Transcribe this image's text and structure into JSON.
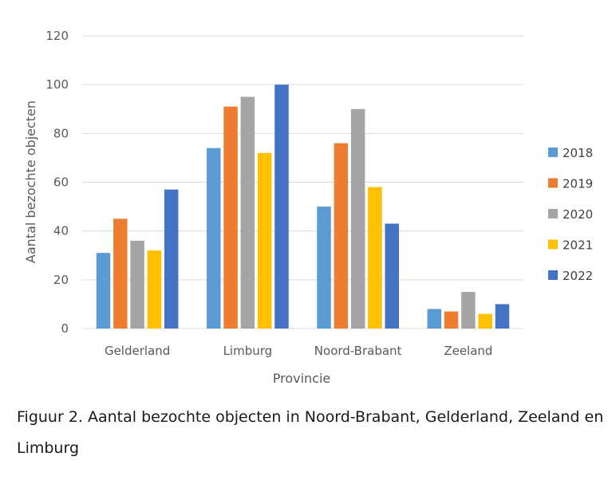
{
  "chart_data": {
    "type": "bar",
    "categories": [
      "Gelderland",
      "Limburg",
      "Noord-Brabant",
      "Zeeland"
    ],
    "series": [
      {
        "name": "2018",
        "color": "#5b9bd5",
        "values": [
          31,
          74,
          50,
          8
        ]
      },
      {
        "name": "2019",
        "color": "#ed7d31",
        "values": [
          45,
          91,
          76,
          7
        ]
      },
      {
        "name": "2020",
        "color": "#a5a5a5",
        "values": [
          36,
          95,
          90,
          15
        ]
      },
      {
        "name": "2021",
        "color": "#ffc000",
        "values": [
          32,
          72,
          58,
          6
        ]
      },
      {
        "name": "2022",
        "color": "#4472c4",
        "values": [
          57,
          100,
          43,
          10
        ]
      }
    ],
    "xlabel": "Provincie",
    "ylabel": "Aantal bezochte objecten",
    "ylim": [
      0,
      120
    ],
    "yticks": [
      0,
      20,
      40,
      60,
      80,
      100,
      120
    ],
    "grid": true,
    "legend_position": "right"
  },
  "caption": "Figuur 2. Aantal bezochte objecten in Noord-Brabant, Gelderland, Zeeland en Limburg"
}
